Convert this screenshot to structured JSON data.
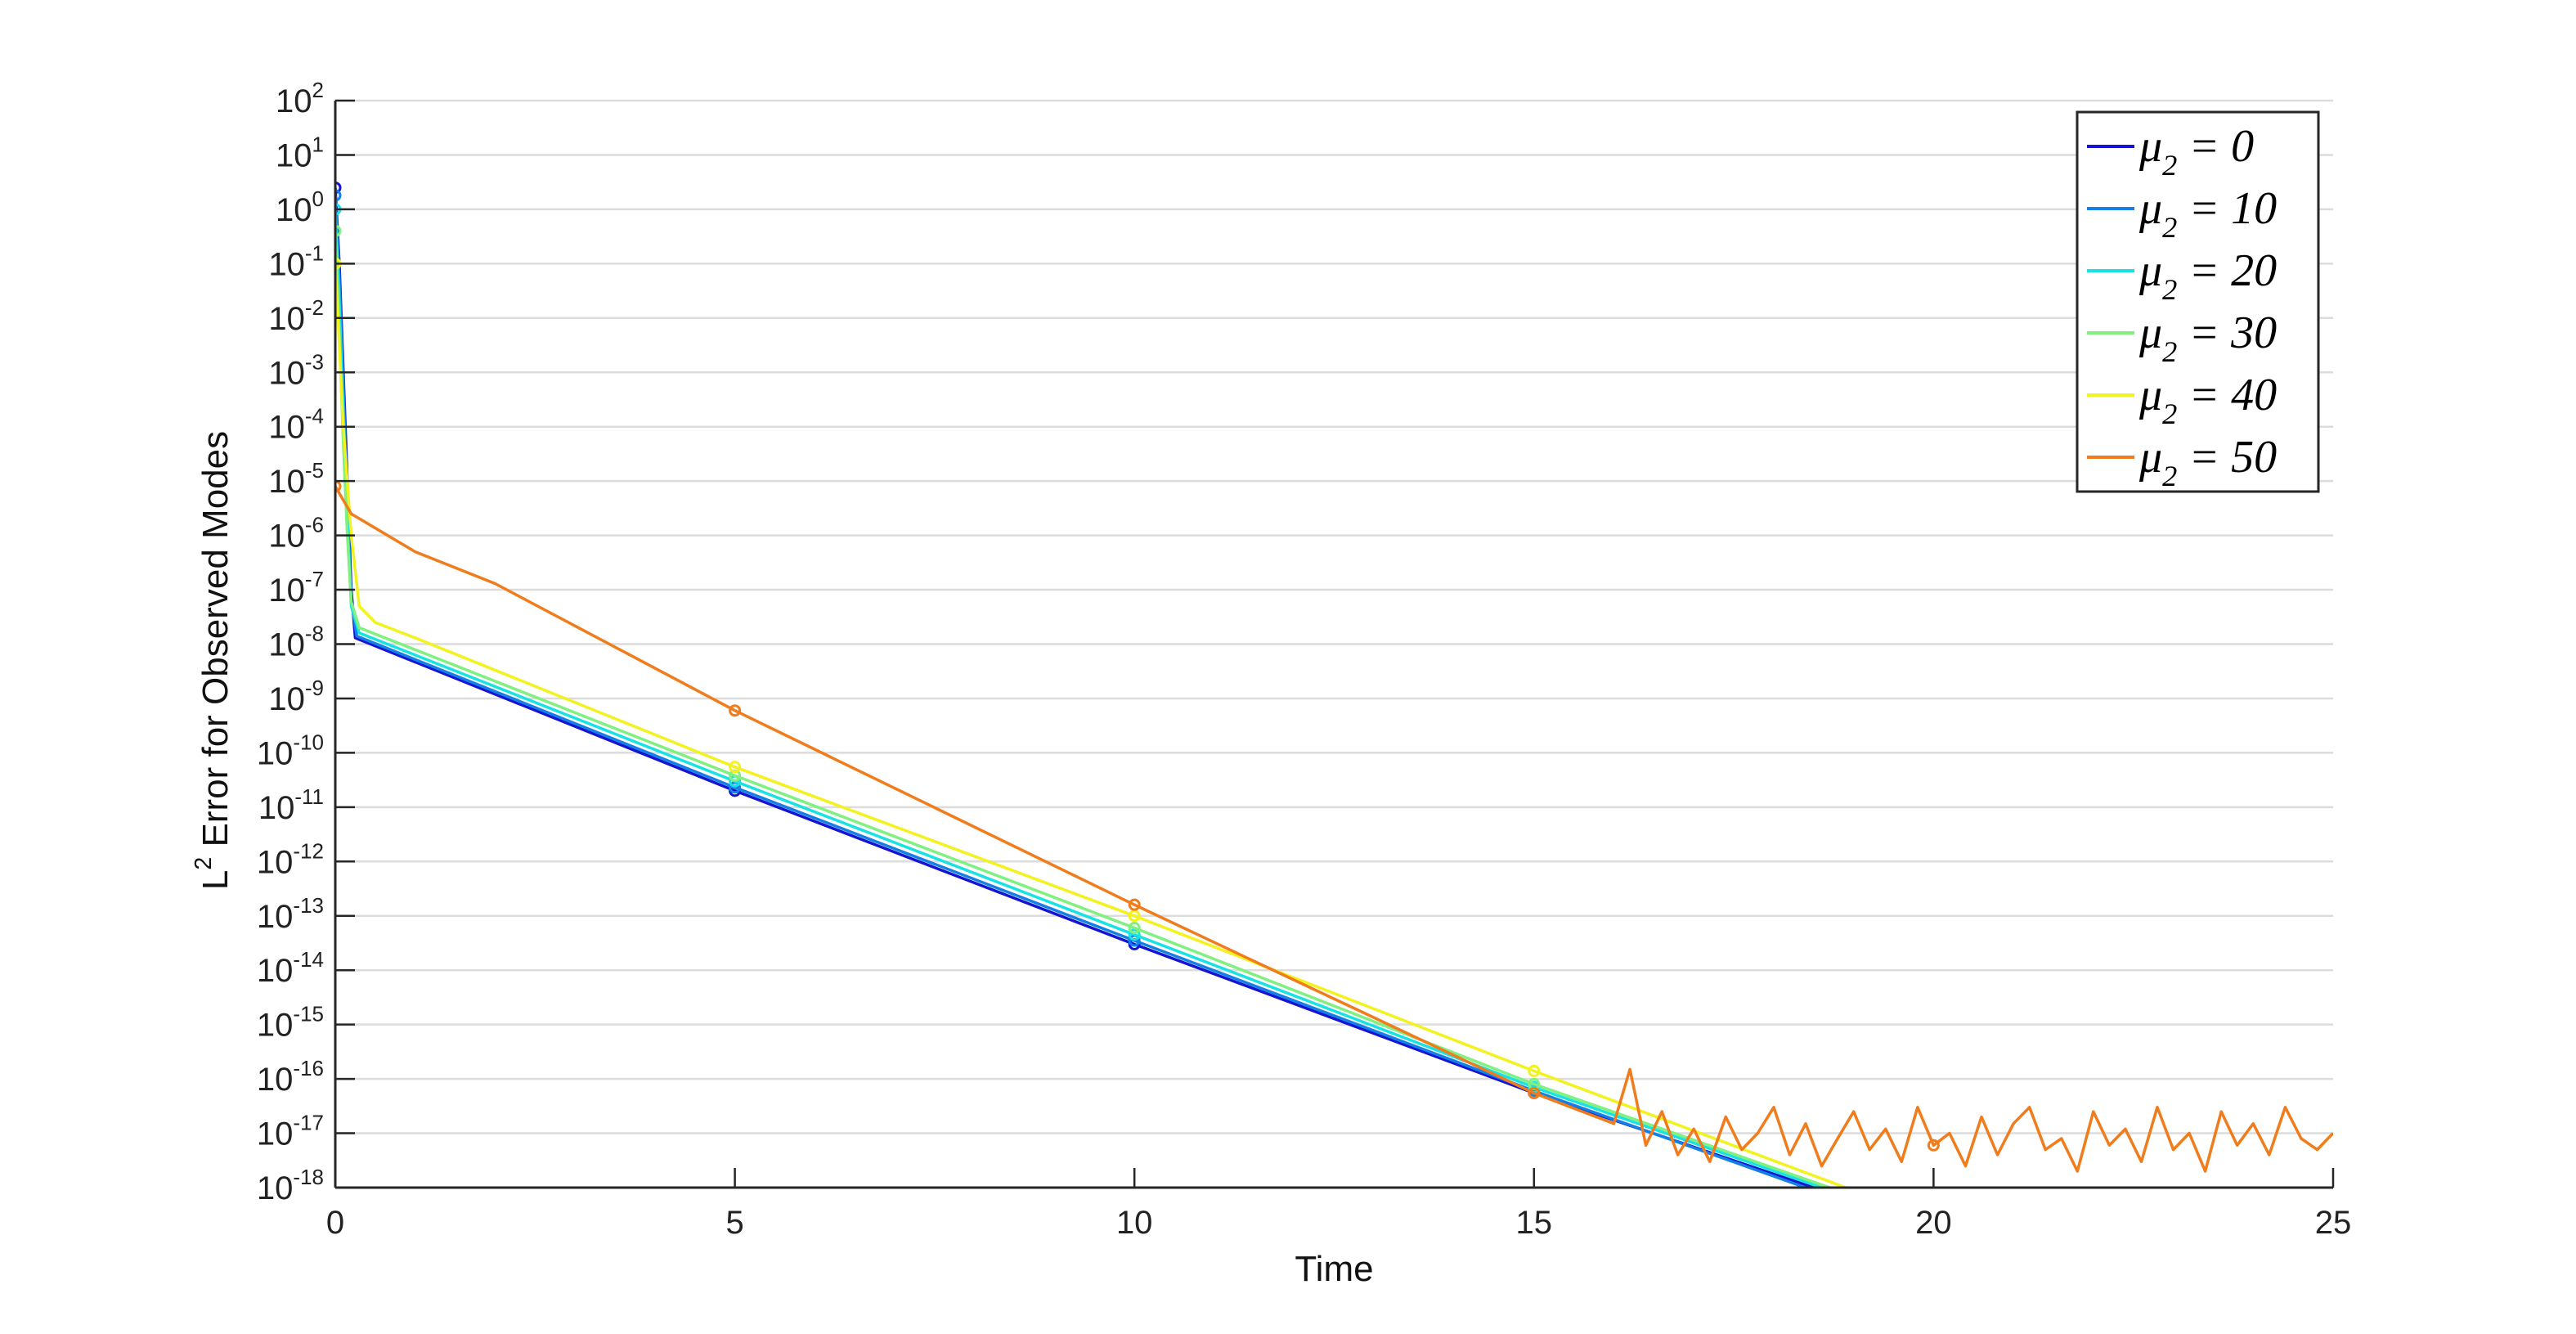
{
  "chart_data": {
    "type": "line",
    "xlabel": "Time",
    "ylabel": "L^2 Error for Observed Modes",
    "log_y": true,
    "grid": true,
    "legend": "upper right",
    "xlim": [
      0,
      25
    ],
    "xticks": [
      0,
      5,
      10,
      15,
      20,
      25
    ],
    "ylim": [
      1e-18,
      100
    ],
    "yticks": [
      {
        "value": 1e-18,
        "label": "10^-18"
      },
      {
        "value": 1e-17,
        "label": "10^-17"
      },
      {
        "value": 1e-16,
        "label": "10^-16"
      },
      {
        "value": 1e-15,
        "label": "10^-15"
      },
      {
        "value": 1e-14,
        "label": "10^-14"
      },
      {
        "value": 1e-13,
        "label": "10^-13"
      },
      {
        "value": 1e-12,
        "label": "10^-12"
      },
      {
        "value": 1e-11,
        "label": "10^-11"
      },
      {
        "value": 1e-10,
        "label": "10^-10"
      },
      {
        "value": 1e-09,
        "label": "10^-9"
      },
      {
        "value": 1e-08,
        "label": "10^-8"
      },
      {
        "value": 1e-07,
        "label": "10^-7"
      },
      {
        "value": 1e-06,
        "label": "10^-6"
      },
      {
        "value": 1e-05,
        "label": "10^-5"
      },
      {
        "value": 0.0001,
        "label": "10^-4"
      },
      {
        "value": 0.001,
        "label": "10^-3"
      },
      {
        "value": 0.01,
        "label": "10^-2"
      },
      {
        "value": 0.1,
        "label": "10^-1"
      },
      {
        "value": 1,
        "label": "10^0"
      },
      {
        "value": 10,
        "label": "10^1"
      },
      {
        "value": 100,
        "label": "10^2"
      }
    ],
    "series": [
      {
        "name": "μ_2 = 0",
        "color": "#1414d2",
        "x": [
          0,
          0.05,
          0.1,
          0.15,
          0.2,
          0.25,
          5,
          10,
          15,
          18.5
        ],
        "values": [
          2.5,
          0.1,
          0.001,
          1e-05,
          1e-07,
          1.3e-08,
          2e-11,
          3e-14,
          5.5e-17,
          1e-18
        ]
      },
      {
        "name": "μ_2 = 10",
        "color": "#1480e6",
        "x": [
          0,
          0.05,
          0.1,
          0.15,
          0.2,
          0.27,
          5,
          10,
          15,
          18.4
        ],
        "values": [
          1.8,
          0.05,
          0.0005,
          5e-06,
          6e-08,
          1.4e-08,
          2.3e-11,
          3.5e-14,
          6e-17,
          1e-18
        ]
      },
      {
        "name": "μ_2 = 20",
        "color": "#18e2e2",
        "x": [
          0,
          0.05,
          0.1,
          0.15,
          0.2,
          0.3,
          5,
          10,
          15,
          18.6
        ],
        "values": [
          1,
          0.02,
          0.0002,
          2e-06,
          5e-08,
          1.6e-08,
          3e-11,
          4.5e-14,
          7e-17,
          1e-18
        ]
      },
      {
        "name": "μ_2 = 30",
        "color": "#80f080",
        "x": [
          0,
          0.05,
          0.1,
          0.15,
          0.2,
          0.3,
          5,
          10,
          15,
          18.7
        ],
        "values": [
          0.4,
          0.005,
          5e-05,
          1e-06,
          6e-08,
          2e-08,
          3.8e-11,
          6e-14,
          8e-17,
          1e-18
        ]
      },
      {
        "name": "μ_2 = 40",
        "color": "#f2f21e",
        "x": [
          0,
          0.1,
          0.2,
          0.3,
          0.5,
          1,
          5,
          10,
          15,
          18.9
        ],
        "values": [
          0.1,
          0.0001,
          1e-06,
          5e-08,
          2.5e-08,
          1.3e-08,
          5.5e-11,
          1e-13,
          1.4e-16,
          1e-18
        ]
      },
      {
        "name": "μ_2 = 50",
        "color": "#f07c1c",
        "x": [
          0,
          0.2,
          1,
          2,
          5,
          10,
          15,
          16,
          16.2,
          16.4,
          16.6,
          16.8,
          17,
          17.2,
          17.4,
          17.6,
          17.8,
          18,
          18.2,
          18.4,
          18.6,
          18.8,
          19,
          19.2,
          19.4,
          19.6,
          19.8,
          20,
          20.2,
          20.4,
          20.6,
          20.8,
          21,
          21.2,
          21.4,
          21.6,
          21.8,
          22,
          22.2,
          22.4,
          22.6,
          22.8,
          23,
          23.2,
          23.4,
          23.6,
          23.8,
          24,
          24.2,
          24.4,
          24.6,
          24.8,
          25
        ],
        "values": [
          8e-06,
          2.5e-06,
          5e-07,
          1.3e-07,
          6e-10,
          1.6e-13,
          5.5e-17,
          1.5e-17,
          1.5e-16,
          6e-18,
          2.5e-17,
          4e-18,
          1.2e-17,
          3e-18,
          2e-17,
          5e-18,
          1e-17,
          3e-17,
          4e-18,
          1.5e-17,
          2.5e-18,
          8e-18,
          2.5e-17,
          5e-18,
          1.2e-17,
          3e-18,
          3e-17,
          6e-18,
          1e-17,
          2.5e-18,
          2e-17,
          4e-18,
          1.5e-17,
          3e-17,
          5e-18,
          8e-18,
          2e-18,
          2.5e-17,
          6e-18,
          1.2e-17,
          3e-18,
          3e-17,
          5e-18,
          1e-17,
          2e-18,
          2.5e-17,
          6e-18,
          1.5e-17,
          4e-18,
          3e-17,
          8e-18,
          5e-18,
          1e-17
        ]
      }
    ]
  }
}
